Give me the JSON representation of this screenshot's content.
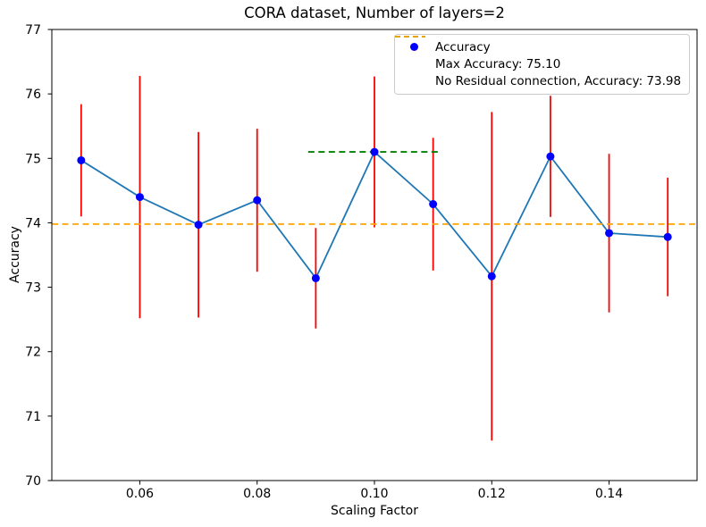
{
  "figure": {
    "title": "CORA dataset, Number of layers=2"
  },
  "chart_data": {
    "type": "line",
    "title": "CORA dataset, Number of layers=2",
    "xlabel": "Scaling Factor",
    "ylabel": "Accuracy",
    "xlim": [
      0.045,
      0.155
    ],
    "ylim": [
      70,
      77
    ],
    "xticks": [
      0.06,
      0.08,
      0.1,
      0.12,
      0.14
    ],
    "yticks": [
      70,
      71,
      72,
      73,
      74,
      75,
      76,
      77
    ],
    "grid": false,
    "x": [
      0.05,
      0.06,
      0.07,
      0.08,
      0.09,
      0.1,
      0.11,
      0.12,
      0.13,
      0.14,
      0.15
    ],
    "series": [
      {
        "name": "Accuracy",
        "values": [
          74.97,
          74.4,
          73.97,
          74.35,
          73.14,
          75.1,
          74.29,
          73.17,
          75.03,
          73.84,
          73.78
        ],
        "yerr": [
          0.87,
          1.88,
          1.44,
          1.11,
          0.78,
          1.17,
          1.03,
          2.55,
          0.94,
          1.23,
          0.92
        ],
        "marker_color": "#0000ff",
        "line_color": "#1f77b4",
        "error_color": "#ff0000"
      }
    ],
    "hlines": [
      {
        "label": "Max Accuracy: 75.10",
        "y": 75.1,
        "x_start": 0.0887,
        "x_end": 0.1113,
        "color": "#008000",
        "style": "dashed"
      },
      {
        "label": "No Residual connection, Accuracy: 73.98",
        "y": 73.98,
        "x_start": 0.045,
        "x_end": 0.155,
        "color": "#ffa500",
        "style": "dashed"
      }
    ],
    "legend": {
      "position": "upper right",
      "entries": [
        {
          "label": "Accuracy",
          "marker": "dot",
          "color": "#0000ff"
        },
        {
          "label": "Max Accuracy: 75.10",
          "marker": "dashed-line",
          "color": "#008000"
        },
        {
          "label": "No Residual connection, Accuracy: 73.98",
          "marker": "dashed-line",
          "color": "#ffa500"
        }
      ]
    }
  }
}
